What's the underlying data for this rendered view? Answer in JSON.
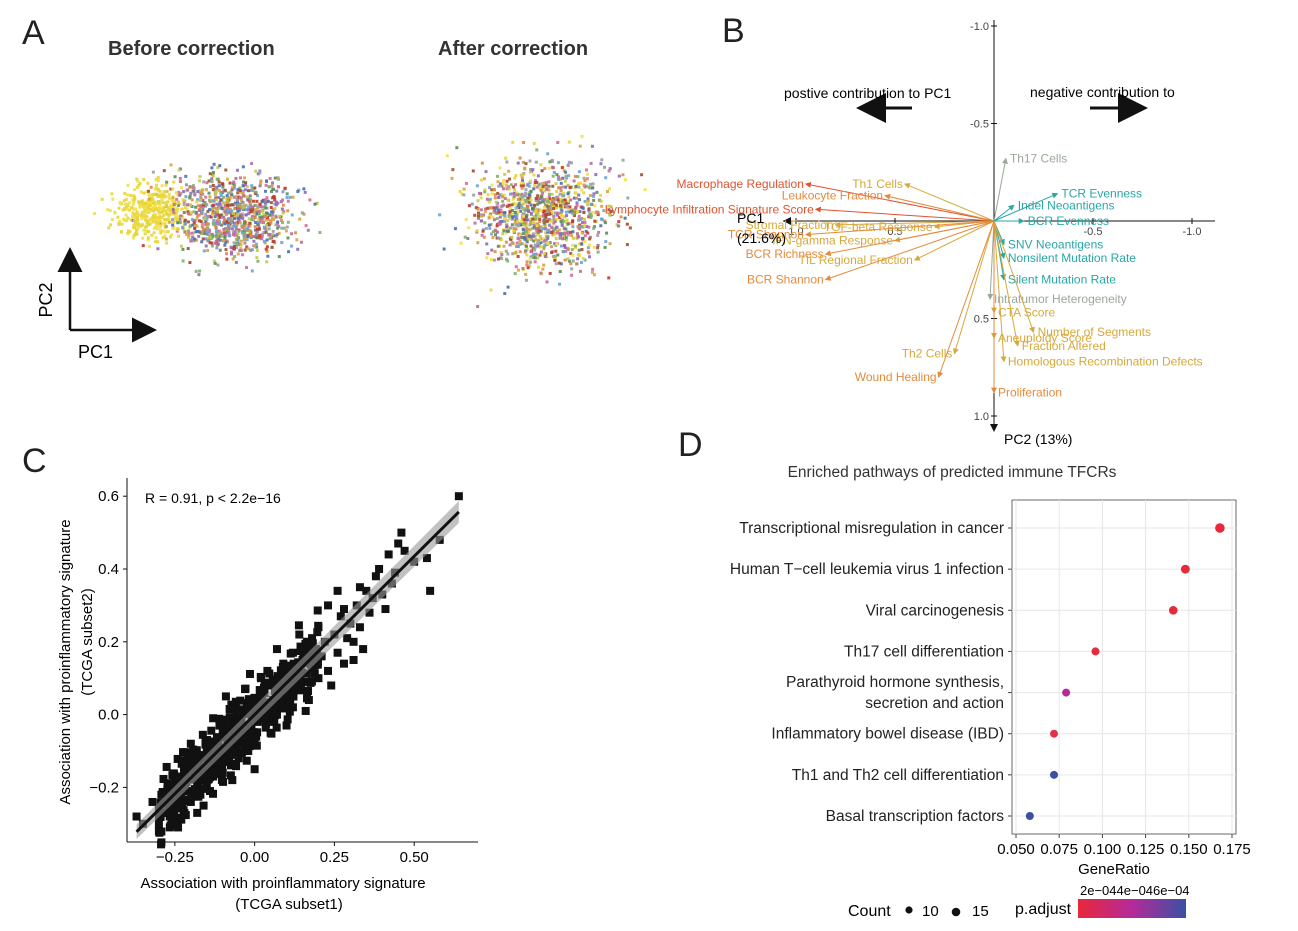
{
  "panel_labels": {
    "a": "A",
    "b": "B",
    "c": "C",
    "d": "D"
  },
  "panel_a": {
    "before_title": "Before correction",
    "after_title": "After correction",
    "axis_x": "PC1",
    "axis_y": "PC2"
  },
  "panel_b": {
    "left_note": "postive contribution to PC1",
    "right_note": "negative contribution to",
    "axis_x_label": "PC1",
    "axis_x_pct": "(21.6%)",
    "axis_y_label": "PC2 (13%)",
    "colors": {
      "orange": "#e58a3b",
      "gold": "#d6a93a",
      "teal": "#2aa6a6",
      "gray": "#9aa89a",
      "red": "#e0532e"
    }
  },
  "panel_c": {
    "annotation": "R = 0.91, p < 2.2e−16",
    "xlabel_line1": "Association with proinflammatory signature",
    "xlabel_line2": "(TCGA subset1)",
    "ylabel_line1": "Association with proinflammatory signature",
    "ylabel_line2": "(TCGA subset2)"
  },
  "panel_d": {
    "title": "Enriched pathways of predicted immune TFCRs",
    "legend_count_label": "Count",
    "legend_count_values": [
      "10",
      "15"
    ],
    "legend_padj_label": "p.adjust",
    "legend_padj_ticks": "2e−044e−046e−04"
  },
  "chart_data": [
    {
      "type": "scatter",
      "title": "Before correction",
      "xlabel": "PC1",
      "ylabel": "PC2",
      "note": "PCA of samples colored by batch; dense cloud, no numeric axes shown"
    },
    {
      "type": "scatter",
      "title": "After correction",
      "xlabel": "",
      "ylabel": "",
      "note": "PCA after batch correction; batches intermixed"
    },
    {
      "type": "biplot",
      "xlabel": "PC1 (21.6%)",
      "ylabel": "PC2 (13%)",
      "xlim": [
        1.0,
        -1.0
      ],
      "ylim": [
        -1.0,
        1.0
      ],
      "x_ticks": [
        "1.0",
        "0.5",
        "-0.5",
        "-1.0"
      ],
      "y_ticks": [
        "-1.0",
        "-0.5",
        "0.5",
        "1.0"
      ],
      "loadings": [
        {
          "name": "Th17 Cells",
          "x": -0.06,
          "y": -0.32,
          "color": "gray"
        },
        {
          "name": "Macrophage Regulation",
          "x": 0.95,
          "y": -0.19,
          "color": "red"
        },
        {
          "name": "Th1 Cells",
          "x": 0.45,
          "y": -0.19,
          "color": "gold"
        },
        {
          "name": "Leukocyte Fraction",
          "x": 0.55,
          "y": -0.13,
          "color": "orange"
        },
        {
          "name": "Lymphocyte Infiltration Signature Score",
          "x": 0.9,
          "y": -0.06,
          "color": "red"
        },
        {
          "name": "Indel Neoantigens",
          "x": -0.1,
          "y": -0.08,
          "color": "teal"
        },
        {
          "name": "TCR Evenness",
          "x": -0.32,
          "y": -0.14,
          "color": "teal"
        },
        {
          "name": "BCR Evenness",
          "x": -0.15,
          "y": 0.0,
          "color": "teal"
        },
        {
          "name": "Stromal Fraction",
          "x": 0.8,
          "y": 0.02,
          "color": "gold"
        },
        {
          "name": "TGF-beta Response",
          "x": 0.3,
          "y": 0.03,
          "color": "gold"
        },
        {
          "name": "TCR Shannon",
          "x": 0.95,
          "y": 0.07,
          "color": "orange"
        },
        {
          "name": "IFN-gamma Response",
          "x": 0.5,
          "y": 0.1,
          "color": "gold"
        },
        {
          "name": "SNV Neoantigens",
          "x": -0.05,
          "y": 0.12,
          "color": "teal"
        },
        {
          "name": "BCR Richness",
          "x": 0.85,
          "y": 0.17,
          "color": "orange"
        },
        {
          "name": "TIL Regional Fraction",
          "x": 0.4,
          "y": 0.2,
          "color": "gold"
        },
        {
          "name": "Nonsilent Mutation Rate",
          "x": -0.05,
          "y": 0.19,
          "color": "teal"
        },
        {
          "name": "BCR Shannon",
          "x": 0.85,
          "y": 0.3,
          "color": "orange"
        },
        {
          "name": "Silent Mutation Rate",
          "x": -0.05,
          "y": 0.3,
          "color": "teal"
        },
        {
          "name": "Intratumor Heterogeneity",
          "x": 0.02,
          "y": 0.4,
          "color": "gray"
        },
        {
          "name": "CTA Score",
          "x": 0.0,
          "y": 0.47,
          "color": "gold"
        },
        {
          "name": "Number of Segments",
          "x": -0.2,
          "y": 0.57,
          "color": "gold"
        },
        {
          "name": "Aneuploidy Score",
          "x": 0.0,
          "y": 0.6,
          "color": "gold"
        },
        {
          "name": "Fraction Altered",
          "x": -0.12,
          "y": 0.64,
          "color": "gold"
        },
        {
          "name": "Th2 Cells",
          "x": 0.2,
          "y": 0.68,
          "color": "gold"
        },
        {
          "name": "Homologous Recombination Defects",
          "x": -0.05,
          "y": 0.72,
          "color": "gold"
        },
        {
          "name": "Wound Healing",
          "x": 0.28,
          "y": 0.8,
          "color": "orange"
        },
        {
          "name": "Proliferation",
          "x": 0.0,
          "y": 0.88,
          "color": "orange"
        }
      ]
    },
    {
      "type": "scatter",
      "xlabel": "Association with proinflammatory signature (TCGA subset1)",
      "ylabel": "Association with proinflammatory signature (TCGA subset2)",
      "xlim": [
        -0.4,
        0.7
      ],
      "ylim": [
        -0.35,
        0.65
      ],
      "x_ticks": [
        "−0.25",
        "0.00",
        "0.25",
        "0.50"
      ],
      "y_ticks": [
        "−0.2",
        "0.0",
        "0.2",
        "0.4",
        "0.6"
      ],
      "annotation": "R = 0.91, p < 2.2e−16",
      "fit": {
        "slope": 0.87,
        "intercept": 0.0
      },
      "points": [
        [
          -0.37,
          -0.28
        ],
        [
          -0.35,
          -0.3
        ],
        [
          -0.3,
          -0.26
        ],
        [
          -0.3,
          -0.32
        ],
        [
          -0.28,
          -0.22
        ],
        [
          -0.27,
          -0.25
        ],
        [
          -0.26,
          -0.29
        ],
        [
          -0.25,
          -0.2
        ],
        [
          -0.24,
          -0.23
        ],
        [
          -0.23,
          -0.18
        ],
        [
          -0.22,
          -0.27
        ],
        [
          -0.21,
          -0.21
        ],
        [
          -0.2,
          -0.14
        ],
        [
          -0.2,
          -0.24
        ],
        [
          -0.19,
          -0.17
        ],
        [
          -0.18,
          -0.2
        ],
        [
          -0.17,
          -0.12
        ],
        [
          -0.17,
          -0.22
        ],
        [
          -0.16,
          -0.15
        ],
        [
          -0.15,
          -0.09
        ],
        [
          -0.15,
          -0.19
        ],
        [
          -0.14,
          -0.13
        ],
        [
          -0.13,
          -0.17
        ],
        [
          -0.12,
          -0.08
        ],
        [
          -0.12,
          -0.14
        ],
        [
          -0.11,
          -0.1
        ],
        [
          -0.1,
          -0.05
        ],
        [
          -0.1,
          -0.16
        ],
        [
          -0.09,
          -0.11
        ],
        [
          -0.08,
          -0.06
        ],
        [
          -0.08,
          -0.13
        ],
        [
          -0.07,
          -0.02
        ],
        [
          -0.06,
          -0.09
        ],
        [
          -0.05,
          -0.04
        ],
        [
          -0.05,
          -0.12
        ],
        [
          -0.04,
          0.0
        ],
        [
          -0.03,
          -0.06
        ],
        [
          -0.02,
          -0.1
        ],
        [
          -0.02,
          0.03
        ],
        [
          -0.01,
          -0.04
        ],
        [
          0.0,
          0.01
        ],
        [
          0.0,
          -0.08
        ],
        [
          0.01,
          -0.02
        ],
        [
          0.02,
          0.05
        ],
        [
          0.03,
          -0.01
        ],
        [
          0.04,
          0.02
        ],
        [
          0.05,
          0.08
        ],
        [
          0.05,
          -0.05
        ],
        [
          0.06,
          0.04
        ],
        [
          0.07,
          0.0
        ],
        [
          0.08,
          0.07
        ],
        [
          0.09,
          0.03
        ],
        [
          0.1,
          0.1
        ],
        [
          0.11,
          0.05
        ],
        [
          0.12,
          0.02
        ],
        [
          0.13,
          0.12
        ],
        [
          0.14,
          0.08
        ],
        [
          0.15,
          0.15
        ],
        [
          0.16,
          0.09
        ],
        [
          0.17,
          0.04
        ],
        [
          0.18,
          0.13
        ],
        [
          0.19,
          0.18
        ],
        [
          0.2,
          0.1
        ],
        [
          0.21,
          0.16
        ],
        [
          0.22,
          0.2
        ],
        [
          0.23,
          0.12
        ],
        [
          0.25,
          0.22
        ],
        [
          0.26,
          0.17
        ],
        [
          0.27,
          0.27
        ],
        [
          0.28,
          0.14
        ],
        [
          0.3,
          0.25
        ],
        [
          0.31,
          0.2
        ],
        [
          0.32,
          0.3
        ],
        [
          0.33,
          0.24
        ],
        [
          0.35,
          0.34
        ],
        [
          0.36,
          0.28
        ],
        [
          0.38,
          0.38
        ],
        [
          0.4,
          0.33
        ],
        [
          0.42,
          0.44
        ],
        [
          0.43,
          0.36
        ],
        [
          0.45,
          0.47
        ],
        [
          0.47,
          0.45
        ],
        [
          0.5,
          0.42
        ],
        [
          0.54,
          0.43
        ],
        [
          0.55,
          0.34
        ],
        [
          0.58,
          0.48
        ],
        [
          0.64,
          0.6
        ],
        [
          -0.32,
          -0.24
        ],
        [
          -0.26,
          -0.19
        ],
        [
          -0.22,
          -0.15
        ],
        [
          -0.18,
          -0.27
        ],
        [
          -0.14,
          -0.21
        ],
        [
          -0.11,
          -0.03
        ],
        [
          -0.06,
          0.02
        ],
        [
          -0.03,
          0.07
        ],
        [
          0.02,
          0.1
        ],
        [
          0.06,
          -0.02
        ],
        [
          0.09,
          0.14
        ],
        [
          0.12,
          0.17
        ],
        [
          0.16,
          0.01
        ],
        [
          0.2,
          0.24
        ],
        [
          0.24,
          0.08
        ],
        [
          0.29,
          0.21
        ],
        [
          0.34,
          0.18
        ],
        [
          0.37,
          0.32
        ],
        [
          0.39,
          0.4
        ],
        [
          0.41,
          0.29
        ],
        [
          0.44,
          0.39
        ],
        [
          0.28,
          0.29
        ],
        [
          0.18,
          0.21
        ],
        [
          0.1,
          -0.03
        ],
        [
          -0.16,
          -0.25
        ],
        [
          -0.24,
          -0.31
        ],
        [
          -0.2,
          -0.08
        ],
        [
          -0.13,
          -0.01
        ],
        [
          -0.09,
          0.05
        ],
        [
          0.04,
          0.12
        ],
        [
          0.14,
          0.22
        ],
        [
          0.23,
          0.3
        ],
        [
          0.31,
          0.15
        ],
        [
          0.0,
          -0.15
        ],
        [
          -0.07,
          -0.18
        ],
        [
          -0.19,
          -0.1
        ],
        [
          0.07,
          0.18
        ],
        [
          0.26,
          0.34
        ],
        [
          0.33,
          0.35
        ],
        [
          0.46,
          0.5
        ]
      ]
    },
    {
      "type": "dotplot",
      "title": "Enriched pathways of predicted immune TFCRs",
      "xlabel": "GeneRatio",
      "xlim": [
        0.05,
        0.175
      ],
      "x_ticks": [
        "0.050",
        "0.075",
        "0.100",
        "0.125",
        "0.150",
        "0.175"
      ],
      "categories": [
        "Transcriptional misregulation in cancer",
        "Human T−cell leukemia virus 1 infection",
        "Viral carcinogenesis",
        "Th17 cell differentiation",
        "Parathyroid hormone synthesis,|secretion and action",
        "Inflammatory bowel disease (IBD)",
        "Th1 and Th2 cell differentiation",
        "Basal transcription factors"
      ],
      "generatio": [
        0.168,
        0.148,
        0.141,
        0.096,
        0.079,
        0.072,
        0.072,
        0.058
      ],
      "count": [
        23,
        20,
        19,
        13,
        11,
        10,
        10,
        8
      ],
      "p_adjust": [
        1.5e-05,
        2e-05,
        2.5e-05,
        3e-05,
        0.00033,
        6e-05,
        0.00062,
        0.00066
      ],
      "colors": [
        "#e8283a",
        "#e52a3c",
        "#e52a3c",
        "#e42c3e",
        "#b52a9a",
        "#e3304a",
        "#3c4fa0",
        "#3b50a3"
      ]
    }
  ]
}
